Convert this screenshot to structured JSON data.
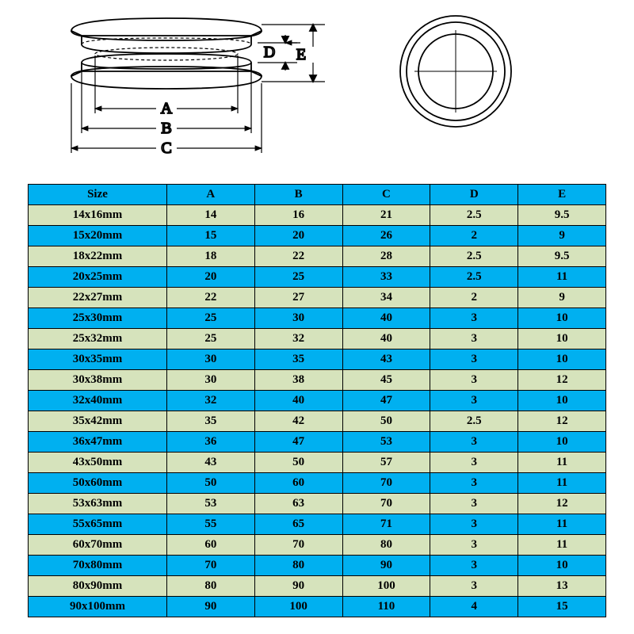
{
  "diagram": {
    "labels": {
      "A": "A",
      "B": "B",
      "C": "C",
      "D": "D",
      "E": "E"
    },
    "stroke": "#000000",
    "stroke_width": 1.8,
    "fill": "#ffffff"
  },
  "table": {
    "type": "table",
    "header_bg": "#00b0f0",
    "row_bg_even": "#d6e3bc",
    "row_bg_odd": "#00b0f0",
    "border_color": "#000000",
    "text_color": "#000000",
    "font_size": 15,
    "font_weight": "bold",
    "columns": [
      "Size",
      "A",
      "B",
      "C",
      "D",
      "E"
    ],
    "rows": [
      [
        "14x16mm",
        "14",
        "16",
        "21",
        "2.5",
        "9.5"
      ],
      [
        "15x20mm",
        "15",
        "20",
        "26",
        "2",
        "9"
      ],
      [
        "18x22mm",
        "18",
        "22",
        "28",
        "2.5",
        "9.5"
      ],
      [
        "20x25mm",
        "20",
        "25",
        "33",
        "2.5",
        "11"
      ],
      [
        "22x27mm",
        "22",
        "27",
        "34",
        "2",
        "9"
      ],
      [
        "25x30mm",
        "25",
        "30",
        "40",
        "3",
        "10"
      ],
      [
        "25x32mm",
        "25",
        "32",
        "40",
        "3",
        "10"
      ],
      [
        "30x35mm",
        "30",
        "35",
        "43",
        "3",
        "10"
      ],
      [
        "30x38mm",
        "30",
        "38",
        "45",
        "3",
        "12"
      ],
      [
        "32x40mm",
        "32",
        "40",
        "47",
        "3",
        "10"
      ],
      [
        "35x42mm",
        "35",
        "42",
        "50",
        "2.5",
        "12"
      ],
      [
        "36x47mm",
        "36",
        "47",
        "53",
        "3",
        "10"
      ],
      [
        "43x50mm",
        "43",
        "50",
        "57",
        "3",
        "11"
      ],
      [
        "50x60mm",
        "50",
        "60",
        "70",
        "3",
        "11"
      ],
      [
        "53x63mm",
        "53",
        "63",
        "70",
        "3",
        "12"
      ],
      [
        "55x65mm",
        "55",
        "65",
        "71",
        "3",
        "11"
      ],
      [
        "60x70mm",
        "60",
        "70",
        "80",
        "3",
        "11"
      ],
      [
        "70x80mm",
        "70",
        "80",
        "90",
        "3",
        "10"
      ],
      [
        "80x90mm",
        "80",
        "90",
        "100",
        "3",
        "13"
      ],
      [
        "90x100mm",
        "90",
        "100",
        "110",
        "4",
        "15"
      ]
    ]
  }
}
